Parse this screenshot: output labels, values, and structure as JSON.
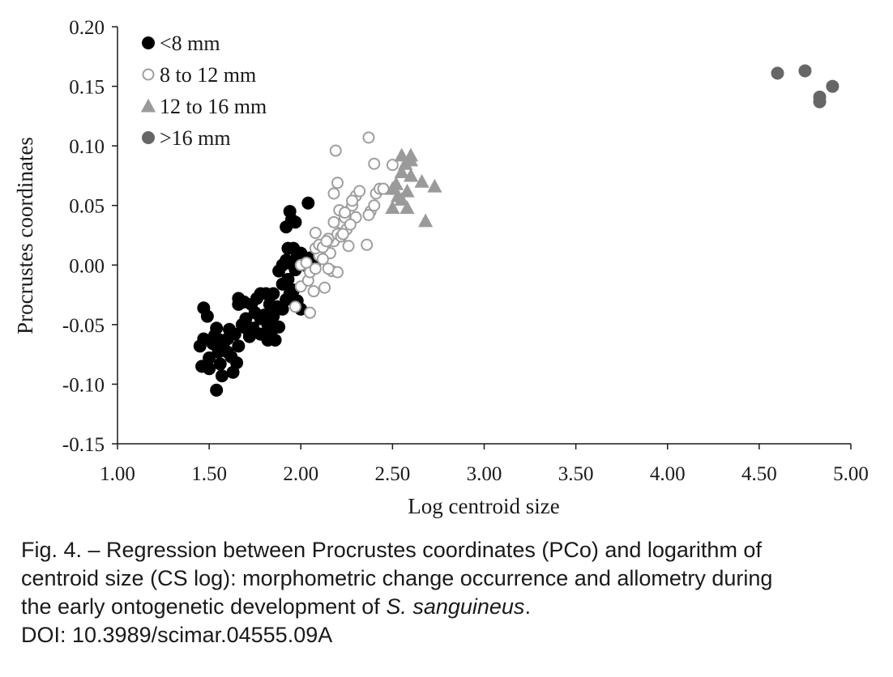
{
  "chart_data": {
    "type": "scatter",
    "title": "",
    "xlabel": "Log centroid size",
    "ylabel": "Procrustes coordinates",
    "xlim": [
      1.0,
      5.0
    ],
    "ylim": [
      -0.15,
      0.2
    ],
    "x_ticks": [
      "1.00",
      "1.50",
      "2.00",
      "2.50",
      "3.00",
      "3.50",
      "4.00",
      "4.50",
      "5.00"
    ],
    "y_ticks": [
      "0.20",
      "0.15",
      "0.10",
      "0.05",
      "0.00",
      "-0.05",
      "-0.10",
      "-0.15"
    ],
    "grid": false,
    "legend_position": "top-left",
    "series": [
      {
        "name": "<8 mm",
        "marker": "filled-circle",
        "color": "#000000",
        "points": [
          [
            1.47,
            -0.036
          ],
          [
            1.49,
            -0.043
          ],
          [
            1.45,
            -0.068
          ],
          [
            1.47,
            -0.062
          ],
          [
            1.46,
            -0.085
          ],
          [
            1.5,
            -0.078
          ],
          [
            1.52,
            -0.066
          ],
          [
            1.53,
            -0.059
          ],
          [
            1.54,
            -0.053
          ],
          [
            1.55,
            -0.073
          ],
          [
            1.56,
            -0.083
          ],
          [
            1.57,
            -0.093
          ],
          [
            1.54,
            -0.105
          ],
          [
            1.5,
            -0.087
          ],
          [
            1.58,
            -0.07
          ],
          [
            1.6,
            -0.062
          ],
          [
            1.61,
            -0.054
          ],
          [
            1.62,
            -0.077
          ],
          [
            1.63,
            -0.09
          ],
          [
            1.65,
            -0.082
          ],
          [
            1.66,
            -0.068
          ],
          [
            1.64,
            -0.058
          ],
          [
            1.68,
            -0.05
          ],
          [
            1.7,
            -0.045
          ],
          [
            1.72,
            -0.06
          ],
          [
            1.74,
            -0.053
          ],
          [
            1.75,
            -0.04
          ],
          [
            1.66,
            -0.033
          ],
          [
            1.66,
            -0.028
          ],
          [
            1.69,
            -0.031
          ],
          [
            1.73,
            -0.033
          ],
          [
            1.76,
            -0.028
          ],
          [
            1.78,
            -0.024
          ],
          [
            1.8,
            -0.042
          ],
          [
            1.82,
            -0.05
          ],
          [
            1.78,
            -0.058
          ],
          [
            1.82,
            -0.063
          ],
          [
            1.86,
            -0.063
          ],
          [
            1.88,
            -0.052
          ],
          [
            1.85,
            -0.043
          ],
          [
            1.83,
            -0.033
          ],
          [
            1.81,
            -0.024
          ],
          [
            1.85,
            -0.024
          ],
          [
            1.87,
            -0.035
          ],
          [
            1.9,
            -0.037
          ],
          [
            1.92,
            -0.029
          ],
          [
            1.94,
            -0.024
          ],
          [
            1.9,
            -0.016
          ],
          [
            1.93,
            -0.012
          ],
          [
            1.96,
            -0.021
          ],
          [
            1.98,
            -0.03
          ],
          [
            2.0,
            -0.037
          ],
          [
            1.88,
            -0.005
          ],
          [
            1.9,
            0.0
          ],
          [
            1.92,
            0.004
          ],
          [
            1.95,
            0.001
          ],
          [
            1.97,
            -0.004
          ],
          [
            2.0,
            0.004
          ],
          [
            2.02,
            0.0
          ],
          [
            1.98,
            0.008
          ],
          [
            1.96,
            0.014
          ],
          [
            1.93,
            0.014
          ],
          [
            2.0,
            0.01
          ],
          [
            2.05,
            0.006
          ],
          [
            2.08,
            0.003
          ],
          [
            1.92,
            0.032
          ],
          [
            1.95,
            0.038
          ],
          [
            1.94,
            0.045
          ],
          [
            1.97,
            0.036
          ],
          [
            2.04,
            0.052
          ],
          [
            1.6,
            -0.073
          ],
          [
            1.56,
            -0.063
          ],
          [
            1.7,
            -0.053
          ],
          [
            1.78,
            -0.045
          ],
          [
            1.84,
            -0.055
          ]
        ]
      },
      {
        "name": "8 to 12 mm",
        "marker": "open-circle",
        "color": "#9e9e9e",
        "points": [
          [
            1.97,
            -0.035
          ],
          [
            2.05,
            -0.04
          ],
          [
            2.0,
            -0.018
          ],
          [
            2.04,
            -0.013
          ],
          [
            2.07,
            -0.022
          ],
          [
            2.13,
            -0.019
          ],
          [
            2.05,
            -0.006
          ],
          [
            2.08,
            -0.003
          ],
          [
            2.0,
            0.0
          ],
          [
            2.03,
            0.002
          ],
          [
            2.1,
            0.008
          ],
          [
            2.13,
            0.014
          ],
          [
            2.16,
            0.01
          ],
          [
            2.18,
            0.02
          ],
          [
            2.2,
            0.026
          ],
          [
            2.22,
            0.035
          ],
          [
            2.24,
            0.04
          ],
          [
            2.26,
            0.045
          ],
          [
            2.28,
            0.05
          ],
          [
            2.3,
            0.058
          ],
          [
            2.32,
            0.062
          ],
          [
            2.25,
            0.03
          ],
          [
            2.22,
            0.024
          ],
          [
            2.08,
            0.014
          ],
          [
            2.1,
            0.017
          ],
          [
            2.12,
            0.015
          ],
          [
            2.15,
            0.022
          ],
          [
            2.18,
            0.036
          ],
          [
            2.21,
            0.046
          ],
          [
            2.23,
            0.026
          ],
          [
            2.26,
            0.016
          ],
          [
            2.3,
            0.04
          ],
          [
            2.17,
            -0.005
          ],
          [
            2.2,
            -0.006
          ],
          [
            2.15,
            -0.003
          ],
          [
            2.2,
            0.069
          ],
          [
            2.18,
            0.06
          ],
          [
            2.19,
            0.096
          ],
          [
            2.28,
            0.054
          ],
          [
            2.38,
            0.045
          ],
          [
            2.4,
            0.05
          ],
          [
            2.41,
            0.06
          ],
          [
            2.43,
            0.064
          ],
          [
            2.45,
            0.064
          ],
          [
            2.37,
            0.042
          ],
          [
            2.36,
            0.017
          ],
          [
            2.4,
            0.085
          ],
          [
            2.5,
            0.084
          ],
          [
            2.37,
            0.107
          ],
          [
            2.08,
            0.027
          ],
          [
            2.12,
            0.005
          ],
          [
            2.14,
            0.02
          ],
          [
            2.27,
            0.034
          ],
          [
            2.24,
            0.044
          ]
        ]
      },
      {
        "name": "12 to 16 mm",
        "marker": "triangle",
        "color": "#9a9a9a",
        "points": [
          [
            2.55,
            0.092
          ],
          [
            2.6,
            0.092
          ],
          [
            2.57,
            0.085
          ],
          [
            2.55,
            0.078
          ],
          [
            2.6,
            0.075
          ],
          [
            2.52,
            0.068
          ],
          [
            2.58,
            0.062
          ],
          [
            2.5,
            0.064
          ],
          [
            2.55,
            0.055
          ],
          [
            2.58,
            0.048
          ],
          [
            2.5,
            0.048
          ],
          [
            2.66,
            0.07
          ],
          [
            2.73,
            0.066
          ],
          [
            2.68,
            0.037
          ],
          [
            2.6,
            0.088
          ],
          [
            2.53,
            0.058
          ]
        ]
      },
      {
        "name": ">16 mm",
        "marker": "filled-circle",
        "color": "#666666",
        "points": [
          [
            4.6,
            0.161
          ],
          [
            4.75,
            0.163
          ],
          [
            4.9,
            0.15
          ],
          [
            4.83,
            0.141
          ],
          [
            4.83,
            0.137
          ]
        ]
      }
    ]
  },
  "caption": {
    "line1": "Fig. 4. – Regression between Procrustes coordinates (PCo) and logarithm of",
    "line2": "centroid size (CS log): morphometric change occurrence and allometry during",
    "line3_prefix": "the early ontogenetic development of ",
    "line3_species": "S. sanguineus",
    "line3_suffix": ".",
    "line4": "DOI: 10.3989/scimar.04555.09A"
  }
}
